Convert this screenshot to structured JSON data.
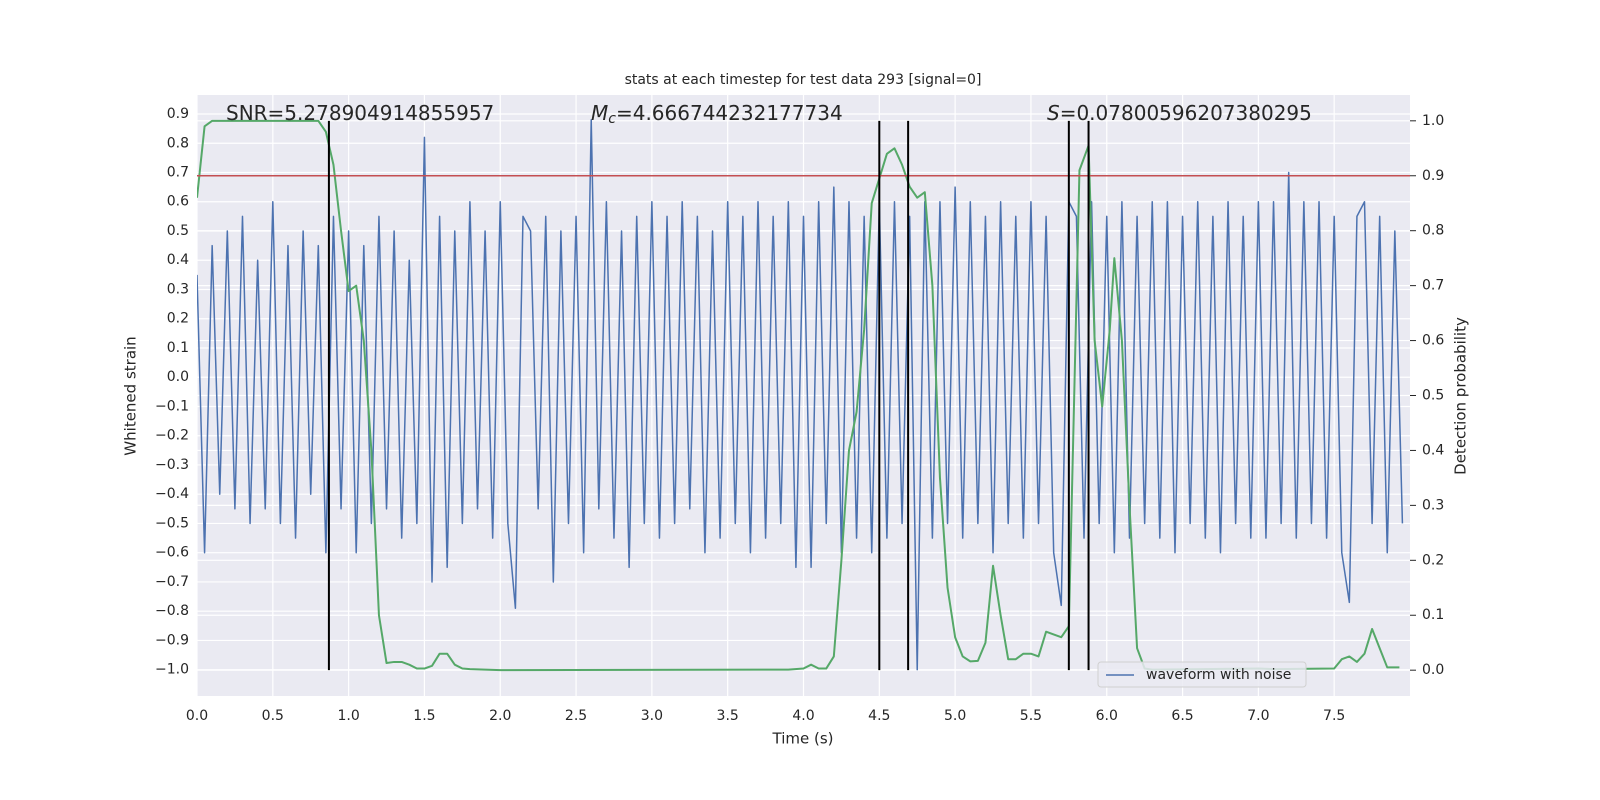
{
  "chart_data": {
    "type": "line",
    "title": "stats at each timestep for test data 293 [signal=0]",
    "xlabel": "Time (s)",
    "ylabel": "Whitened strain",
    "y2label": "Detection probability",
    "xlim": [
      0,
      8
    ],
    "ylim": [
      -1.09,
      0.965
    ],
    "y2lim": [
      -0.047,
      1.047
    ],
    "xticks": [
      {
        "value": 0,
        "label": "0.0"
      },
      0.5,
      {
        "value": 1,
        "label": "1.0"
      },
      1.5,
      {
        "value": 2,
        "label": "2.0"
      },
      2.5,
      {
        "value": 3,
        "label": "3.0"
      },
      3.5,
      {
        "value": 4,
        "label": "4.0"
      },
      4.5,
      {
        "value": 5,
        "label": "5.0"
      },
      5.5,
      {
        "value": 6,
        "label": "6.0"
      },
      6.5,
      {
        "value": 7,
        "label": "7.0"
      },
      7.5
    ],
    "yticks": [
      {
        "value": -1,
        "label": "−1.0"
      },
      {
        "value": -0.9,
        "label": "−0.9"
      },
      {
        "value": -0.8,
        "label": "−0.8"
      },
      {
        "value": -0.7,
        "label": "−0.7"
      },
      {
        "value": -0.6,
        "label": "−0.6"
      },
      {
        "value": -0.5,
        "label": "−0.5"
      },
      {
        "value": -0.4,
        "label": "−0.4"
      },
      {
        "value": -0.3,
        "label": "−0.3"
      },
      {
        "value": -0.2,
        "label": "−0.2"
      },
      {
        "value": -0.1,
        "label": "−0.1"
      },
      {
        "value": 0,
        "label": "0.0"
      },
      0.1,
      0.2,
      0.3,
      0.4,
      0.5,
      0.6,
      0.7,
      0.8,
      0.9
    ],
    "y2ticks": [
      {
        "value": 0,
        "label": "0.0"
      },
      0.1,
      0.2,
      0.3,
      0.4,
      0.5,
      0.6,
      0.7,
      0.8,
      0.9,
      {
        "value": 1,
        "label": "1.0"
      }
    ],
    "grid": true,
    "legend": "lower right",
    "annotations": [
      {
        "text": "SNR=5.278904914855957"
      },
      {
        "symbol": "M",
        "subscript": "c",
        "text": "=4.666744232177734"
      },
      {
        "symbol": "S",
        "text": "=0.07800596207380295"
      }
    ],
    "series": [
      {
        "name": "waveform with noise",
        "color": "#4c72b0",
        "axis": "y",
        "x": [
          0,
          0.05,
          0.1,
          0.15,
          0.2,
          0.25,
          0.3,
          0.35,
          0.4,
          0.45,
          0.5,
          0.55,
          0.6,
          0.65,
          0.7,
          0.75,
          0.8,
          0.85,
          0.9,
          0.95,
          1,
          1.05,
          1.1,
          1.15,
          1.2,
          1.25,
          1.3,
          1.35,
          1.4,
          1.45,
          1.5,
          1.55,
          1.6,
          1.65,
          1.7,
          1.75,
          1.8,
          1.85,
          1.9,
          1.95,
          2,
          2.05,
          2.1,
          2.15,
          2.2,
          2.25,
          2.3,
          2.35,
          2.4,
          2.45,
          2.5,
          2.55,
          2.6,
          2.65,
          2.7,
          2.75,
          2.8,
          2.85,
          2.9,
          2.95,
          3,
          3.05,
          3.1,
          3.15,
          3.2,
          3.25,
          3.3,
          3.35,
          3.4,
          3.45,
          3.5,
          3.55,
          3.6,
          3.65,
          3.7,
          3.75,
          3.8,
          3.85,
          3.9,
          3.95,
          4,
          4.05,
          4.1,
          4.15,
          4.2,
          4.25,
          4.3,
          4.35,
          4.4,
          4.45,
          4.5,
          4.55,
          4.6,
          4.65,
          4.7,
          4.75,
          4.8,
          4.85,
          4.9,
          4.95,
          5,
          5.05,
          5.1,
          5.15,
          5.2,
          5.25,
          5.3,
          5.35,
          5.4,
          5.45,
          5.5,
          5.55,
          5.6,
          5.65,
          5.7,
          5.75,
          5.8,
          5.85,
          5.9,
          5.95,
          6,
          6.05,
          6.1,
          6.15,
          6.2,
          6.25,
          6.3,
          6.35,
          6.4,
          6.45,
          6.5,
          6.55,
          6.6,
          6.65,
          6.7,
          6.75,
          6.8,
          6.85,
          6.9,
          6.95,
          7,
          7.05,
          7.1,
          7.15,
          7.2,
          7.25,
          7.3,
          7.35,
          7.4,
          7.45,
          7.5,
          7.55,
          7.6,
          7.65,
          7.7,
          7.75,
          7.8,
          7.85,
          7.9,
          7.95
        ],
        "values": [
          0.35,
          -0.6,
          0.45,
          -0.4,
          0.5,
          -0.45,
          0.55,
          -0.5,
          0.4,
          -0.45,
          0.6,
          -0.5,
          0.45,
          -0.55,
          0.5,
          -0.4,
          0.45,
          -0.6,
          0.55,
          -0.45,
          0.5,
          -0.6,
          0.45,
          -0.5,
          0.55,
          -0.45,
          0.5,
          -0.55,
          0.4,
          -0.5,
          0.82,
          -0.7,
          0.55,
          -0.65,
          0.5,
          -0.5,
          0.6,
          -0.45,
          0.5,
          -0.55,
          0.6,
          -0.5,
          -0.79,
          0.55,
          0.5,
          -0.45,
          0.55,
          -0.7,
          0.5,
          -0.5,
          0.55,
          -0.6,
          0.88,
          -0.45,
          0.6,
          -0.55,
          0.5,
          -0.65,
          0.55,
          -0.5,
          0.6,
          -0.55,
          0.55,
          -0.5,
          0.6,
          -0.45,
          0.55,
          -0.6,
          0.5,
          -0.55,
          0.6,
          -0.5,
          0.55,
          -0.6,
          0.6,
          -0.55,
          0.55,
          -0.5,
          0.6,
          -0.65,
          0.55,
          -0.65,
          0.6,
          -0.5,
          0.65,
          -0.6,
          0.6,
          -0.55,
          0.55,
          -0.6,
          0.6,
          -0.55,
          0.6,
          -0.5,
          0.55,
          -1.0,
          0.6,
          -0.55,
          0.6,
          -0.5,
          0.65,
          -0.55,
          0.6,
          -0.5,
          0.55,
          -0.6,
          0.6,
          -0.5,
          0.55,
          -0.55,
          0.6,
          -0.5,
          0.55,
          -0.6,
          -0.78,
          0.6,
          0.55,
          -0.55,
          0.6,
          -0.5,
          0.55,
          -0.6,
          0.6,
          -0.55,
          0.55,
          -0.5,
          0.6,
          -0.55,
          0.6,
          -0.6,
          0.55,
          -0.5,
          0.6,
          -0.55,
          0.55,
          -0.6,
          0.6,
          -0.5,
          0.55,
          -0.55,
          0.6,
          -0.55,
          0.6,
          -0.5,
          0.7,
          -0.55,
          0.6,
          -0.5,
          0.6,
          -0.55,
          0.55,
          -0.6,
          -0.77,
          0.55,
          0.6,
          -0.5,
          0.55,
          -0.6,
          0.5,
          -0.5
        ]
      },
      {
        "color": "#55a868",
        "axis": "y2",
        "x": [
          0,
          0.05,
          0.1,
          0.8,
          0.85,
          0.9,
          0.95,
          1,
          1.05,
          1.1,
          1.15,
          1.2,
          1.25,
          1.3,
          1.35,
          1.4,
          1.45,
          1.5,
          1.55,
          1.6,
          1.65,
          1.7,
          1.75,
          1.8,
          1.9,
          2,
          3.9,
          4,
          4.05,
          4.1,
          4.15,
          4.2,
          4.25,
          4.3,
          4.35,
          4.4,
          4.45,
          4.55,
          4.6,
          4.65,
          4.7,
          4.75,
          4.8,
          4.85,
          4.9,
          4.95,
          5,
          5.05,
          5.1,
          5.15,
          5.2,
          5.25,
          5.3,
          5.35,
          5.4,
          5.45,
          5.5,
          5.55,
          5.6,
          5.7,
          5.75,
          5.82,
          5.88,
          5.92,
          5.97,
          6.02,
          6.05,
          6.1,
          6.15,
          6.2,
          6.25,
          6.3,
          7,
          7.1,
          7.5,
          7.55,
          7.6,
          7.65,
          7.7,
          7.75,
          7.8,
          7.85,
          7.93
        ],
        "values": [
          0.86,
          0.99,
          1.0,
          1.0,
          0.98,
          0.92,
          0.8,
          0.69,
          0.7,
          0.6,
          0.4,
          0.1,
          0.013,
          0.015,
          0.015,
          0.01,
          0.003,
          0.003,
          0.008,
          0.03,
          0.03,
          0.01,
          0.003,
          0.002,
          0.001,
          0.0,
          0.001,
          0.003,
          0.01,
          0.003,
          0.003,
          0.025,
          0.2,
          0.4,
          0.47,
          0.62,
          0.85,
          0.94,
          0.95,
          0.92,
          0.88,
          0.86,
          0.87,
          0.7,
          0.35,
          0.15,
          0.06,
          0.025,
          0.016,
          0.017,
          0.05,
          0.19,
          0.1,
          0.02,
          0.02,
          0.03,
          0.03,
          0.025,
          0.07,
          0.06,
          0.08,
          0.91,
          0.955,
          0.6,
          0.48,
          0.62,
          0.75,
          0.6,
          0.3,
          0.04,
          0.003,
          0.001,
          0.003,
          0.002,
          0.003,
          0.02,
          0.025,
          0.015,
          0.03,
          0.075,
          0.04,
          0.005,
          0.005
        ]
      }
    ],
    "hlines": [
      {
        "y": 0.9,
        "axis": "y2",
        "color": "#c44e52"
      }
    ],
    "vlines": {
      "x": [
        0.87,
        4.5,
        4.69,
        5.75,
        5.88
      ],
      "ymin": 0,
      "ymax": 1,
      "axis": "y2",
      "color": "#000000"
    }
  }
}
